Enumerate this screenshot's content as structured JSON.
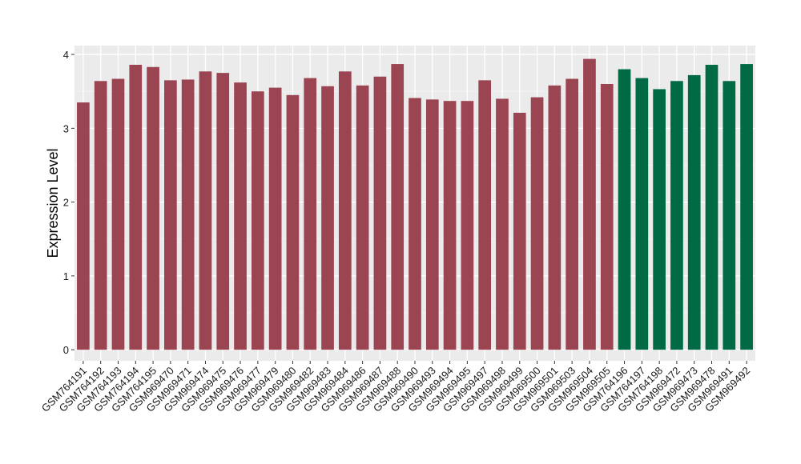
{
  "chart_data": {
    "type": "bar",
    "title": "",
    "xlabel": "",
    "ylabel": "Expression Level",
    "ylim": [
      -0.15,
      4.12
    ],
    "yticks": [
      0,
      1,
      2,
      3,
      4
    ],
    "grid": true,
    "legend": "none",
    "categories": [
      "GSM764191",
      "GSM764192",
      "GSM764193",
      "GSM764194",
      "GSM764195",
      "GSM969470",
      "GSM969471",
      "GSM969474",
      "GSM969475",
      "GSM969476",
      "GSM969477",
      "GSM969479",
      "GSM969480",
      "GSM969482",
      "GSM969483",
      "GSM969484",
      "GSM969486",
      "GSM969487",
      "GSM969488",
      "GSM969490",
      "GSM969493",
      "GSM969494",
      "GSM969495",
      "GSM969497",
      "GSM969498",
      "GSM969499",
      "GSM969500",
      "GSM969501",
      "GSM969503",
      "GSM969504",
      "GSM969505",
      "GSM764196",
      "GSM764197",
      "GSM764198",
      "GSM969472",
      "GSM969473",
      "GSM969478",
      "GSM969491",
      "GSM969492"
    ],
    "values": [
      3.35,
      3.64,
      3.67,
      3.86,
      3.83,
      3.65,
      3.66,
      3.77,
      3.75,
      3.62,
      3.5,
      3.55,
      3.45,
      3.68,
      3.57,
      3.77,
      3.58,
      3.7,
      3.87,
      3.41,
      3.39,
      3.37,
      3.37,
      3.65,
      3.4,
      3.21,
      3.42,
      3.58,
      3.67,
      3.94,
      3.6,
      3.8,
      3.68,
      3.53,
      3.64,
      3.72,
      3.86,
      3.64,
      3.87
    ],
    "colors": [
      "#9b4452",
      "#9b4452",
      "#9b4452",
      "#9b4452",
      "#9b4452",
      "#9b4452",
      "#9b4452",
      "#9b4452",
      "#9b4452",
      "#9b4452",
      "#9b4452",
      "#9b4452",
      "#9b4452",
      "#9b4452",
      "#9b4452",
      "#9b4452",
      "#9b4452",
      "#9b4452",
      "#9b4452",
      "#9b4452",
      "#9b4452",
      "#9b4452",
      "#9b4452",
      "#9b4452",
      "#9b4452",
      "#9b4452",
      "#9b4452",
      "#9b4452",
      "#9b4452",
      "#9b4452",
      "#9b4452",
      "#006a45",
      "#006a45",
      "#006a45",
      "#006a45",
      "#006a45",
      "#006a45",
      "#006a45",
      "#006a45"
    ]
  }
}
